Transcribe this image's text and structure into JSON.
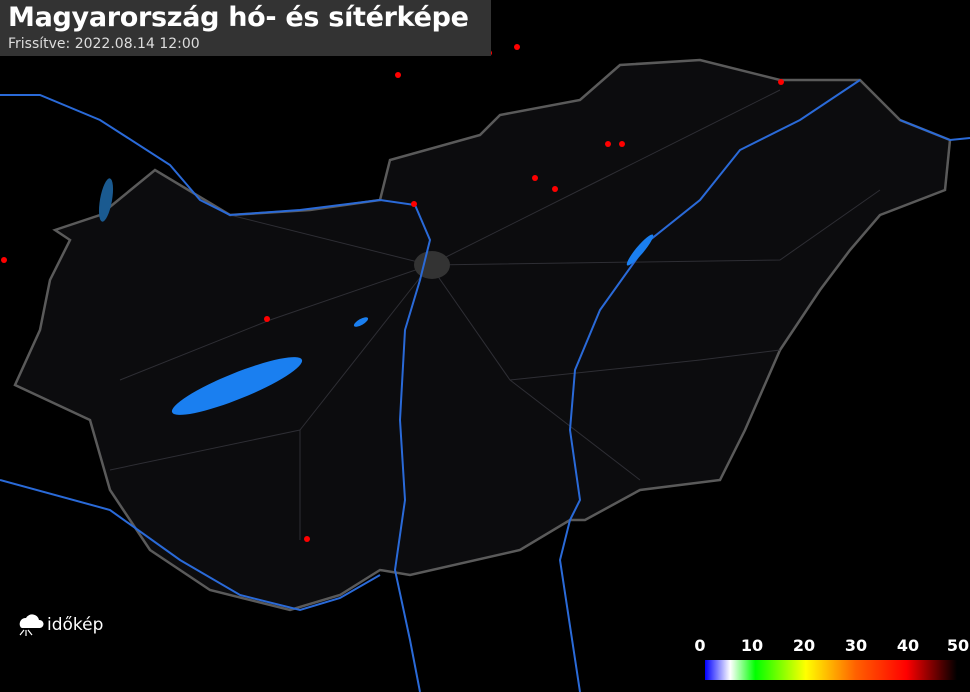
{
  "header": {
    "title": "Magyarország hó- és sítérképe",
    "updated": "Frissítve: 2022.08.14 12:00"
  },
  "logo": {
    "text": "időkép",
    "icon": "cloud-sun-icon"
  },
  "legend": {
    "ticks": [
      "0",
      "10",
      "20",
      "30",
      "40",
      "50"
    ],
    "colors": [
      "#0000ff",
      "#ffffff",
      "#00ff00",
      "#ffff00",
      "#ff6000",
      "#ff0000",
      "#000000"
    ]
  },
  "map": {
    "background": "#000000",
    "border_color": "#555555",
    "water_color": "#1a6fe0",
    "marker_color": "#ff0000"
  }
}
